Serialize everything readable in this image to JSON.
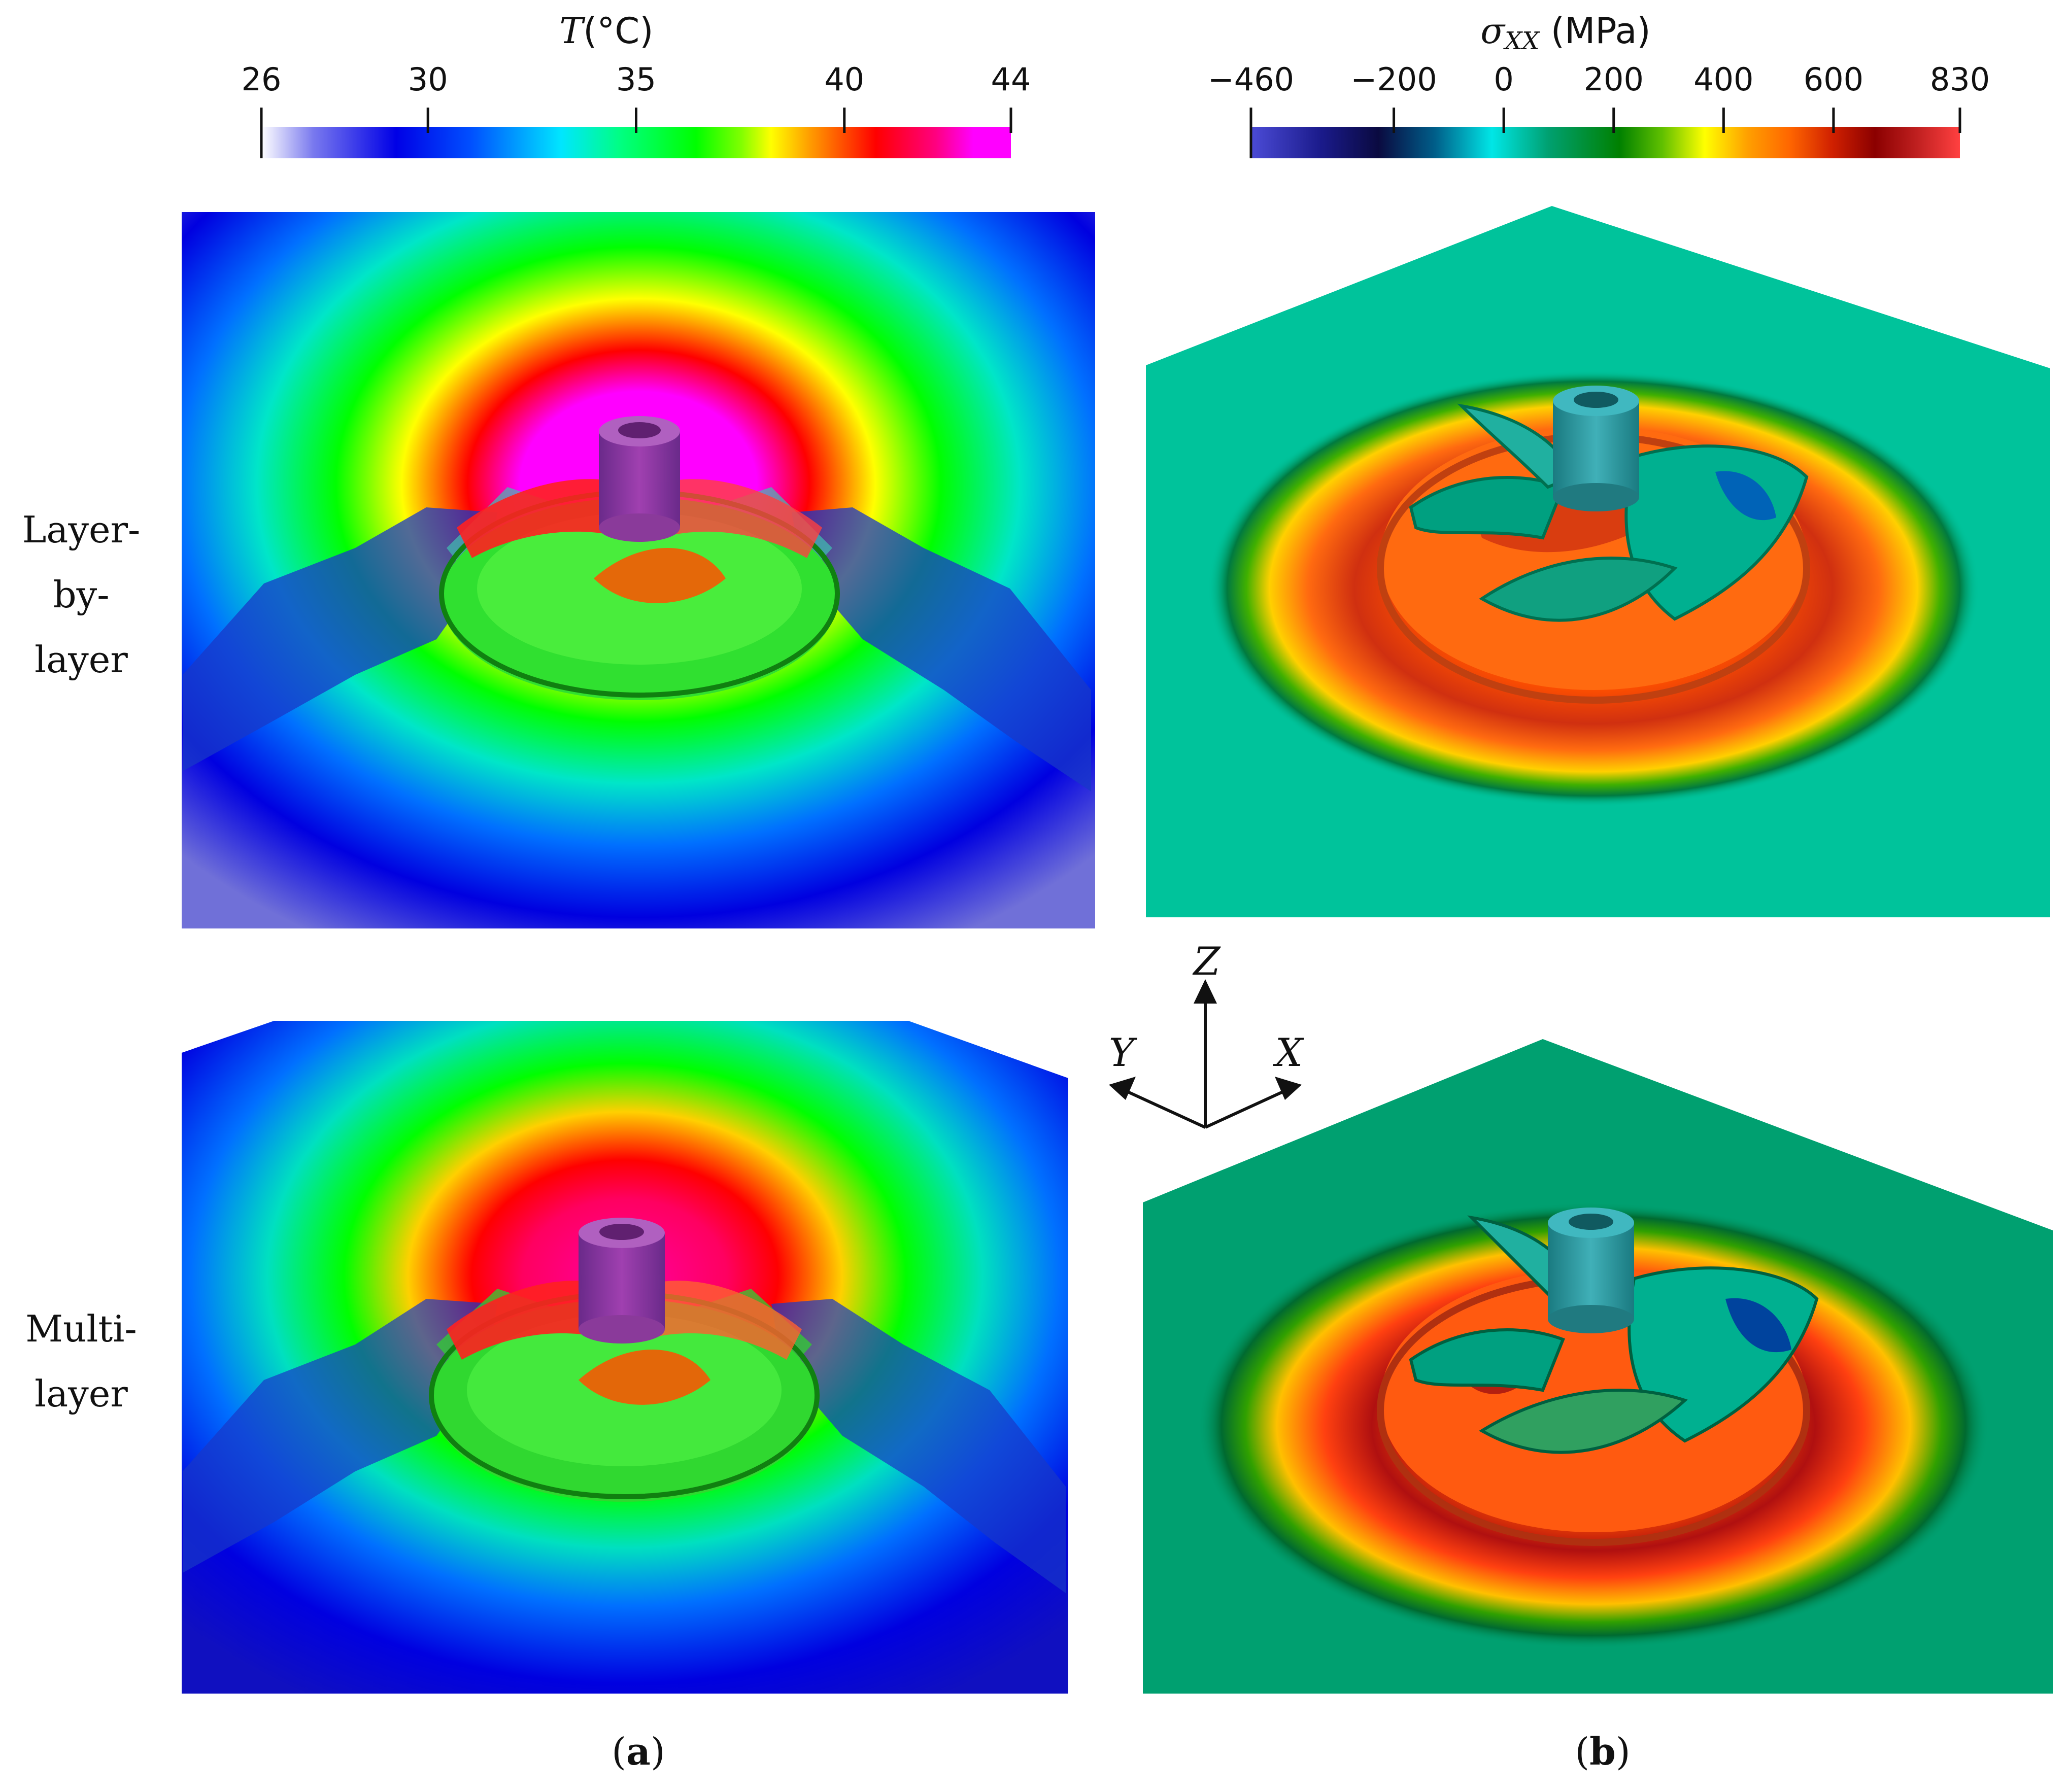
{
  "colorbars": {
    "temperature": {
      "title_symbol": "T",
      "title_unit": "(°C)",
      "ticks": [
        "26",
        "30",
        "35",
        "40",
        "44"
      ],
      "tick_values": [
        26,
        30,
        35,
        40,
        44
      ],
      "range": [
        26,
        44
      ],
      "colors": [
        "#ffffff",
        "#0000e6",
        "#00e6ff",
        "#00ff00",
        "#ffff00",
        "#ff0000",
        "#ff00ff"
      ]
    },
    "stress": {
      "title_symbol": "σ",
      "title_subscript": "XX",
      "title_unit": "(MPa)",
      "ticks": [
        "−460",
        "−200",
        "0",
        "200",
        "400",
        "600",
        "830"
      ],
      "tick_values": [
        -460,
        -200,
        0,
        200,
        400,
        600,
        830
      ],
      "range": [
        -460,
        830
      ],
      "colors": [
        "#4b4bd6",
        "#0a0a5a",
        "#00e6e6",
        "#008000",
        "#ffff00",
        "#ff6600",
        "#8b0000",
        "#ff4040"
      ]
    }
  },
  "rows": {
    "layer_by_layer": {
      "label_lines": [
        "Layer-",
        "by-",
        "layer"
      ]
    },
    "multi_layer": {
      "label_lines": [
        "Multi-",
        "layer"
      ]
    }
  },
  "axes_triad": {
    "z": "Z",
    "y": "Y",
    "x": "X"
  },
  "panels": {
    "a": {
      "open": "(",
      "letter": "a",
      "close": ")"
    },
    "b": {
      "open": "(",
      "letter": "b",
      "close": ")"
    }
  },
  "colors": {
    "temp_base": "#2020d8",
    "temp_hot": "#ff00ff",
    "stress_base": "#00c39b",
    "stress_ring": "#ff5a14"
  }
}
